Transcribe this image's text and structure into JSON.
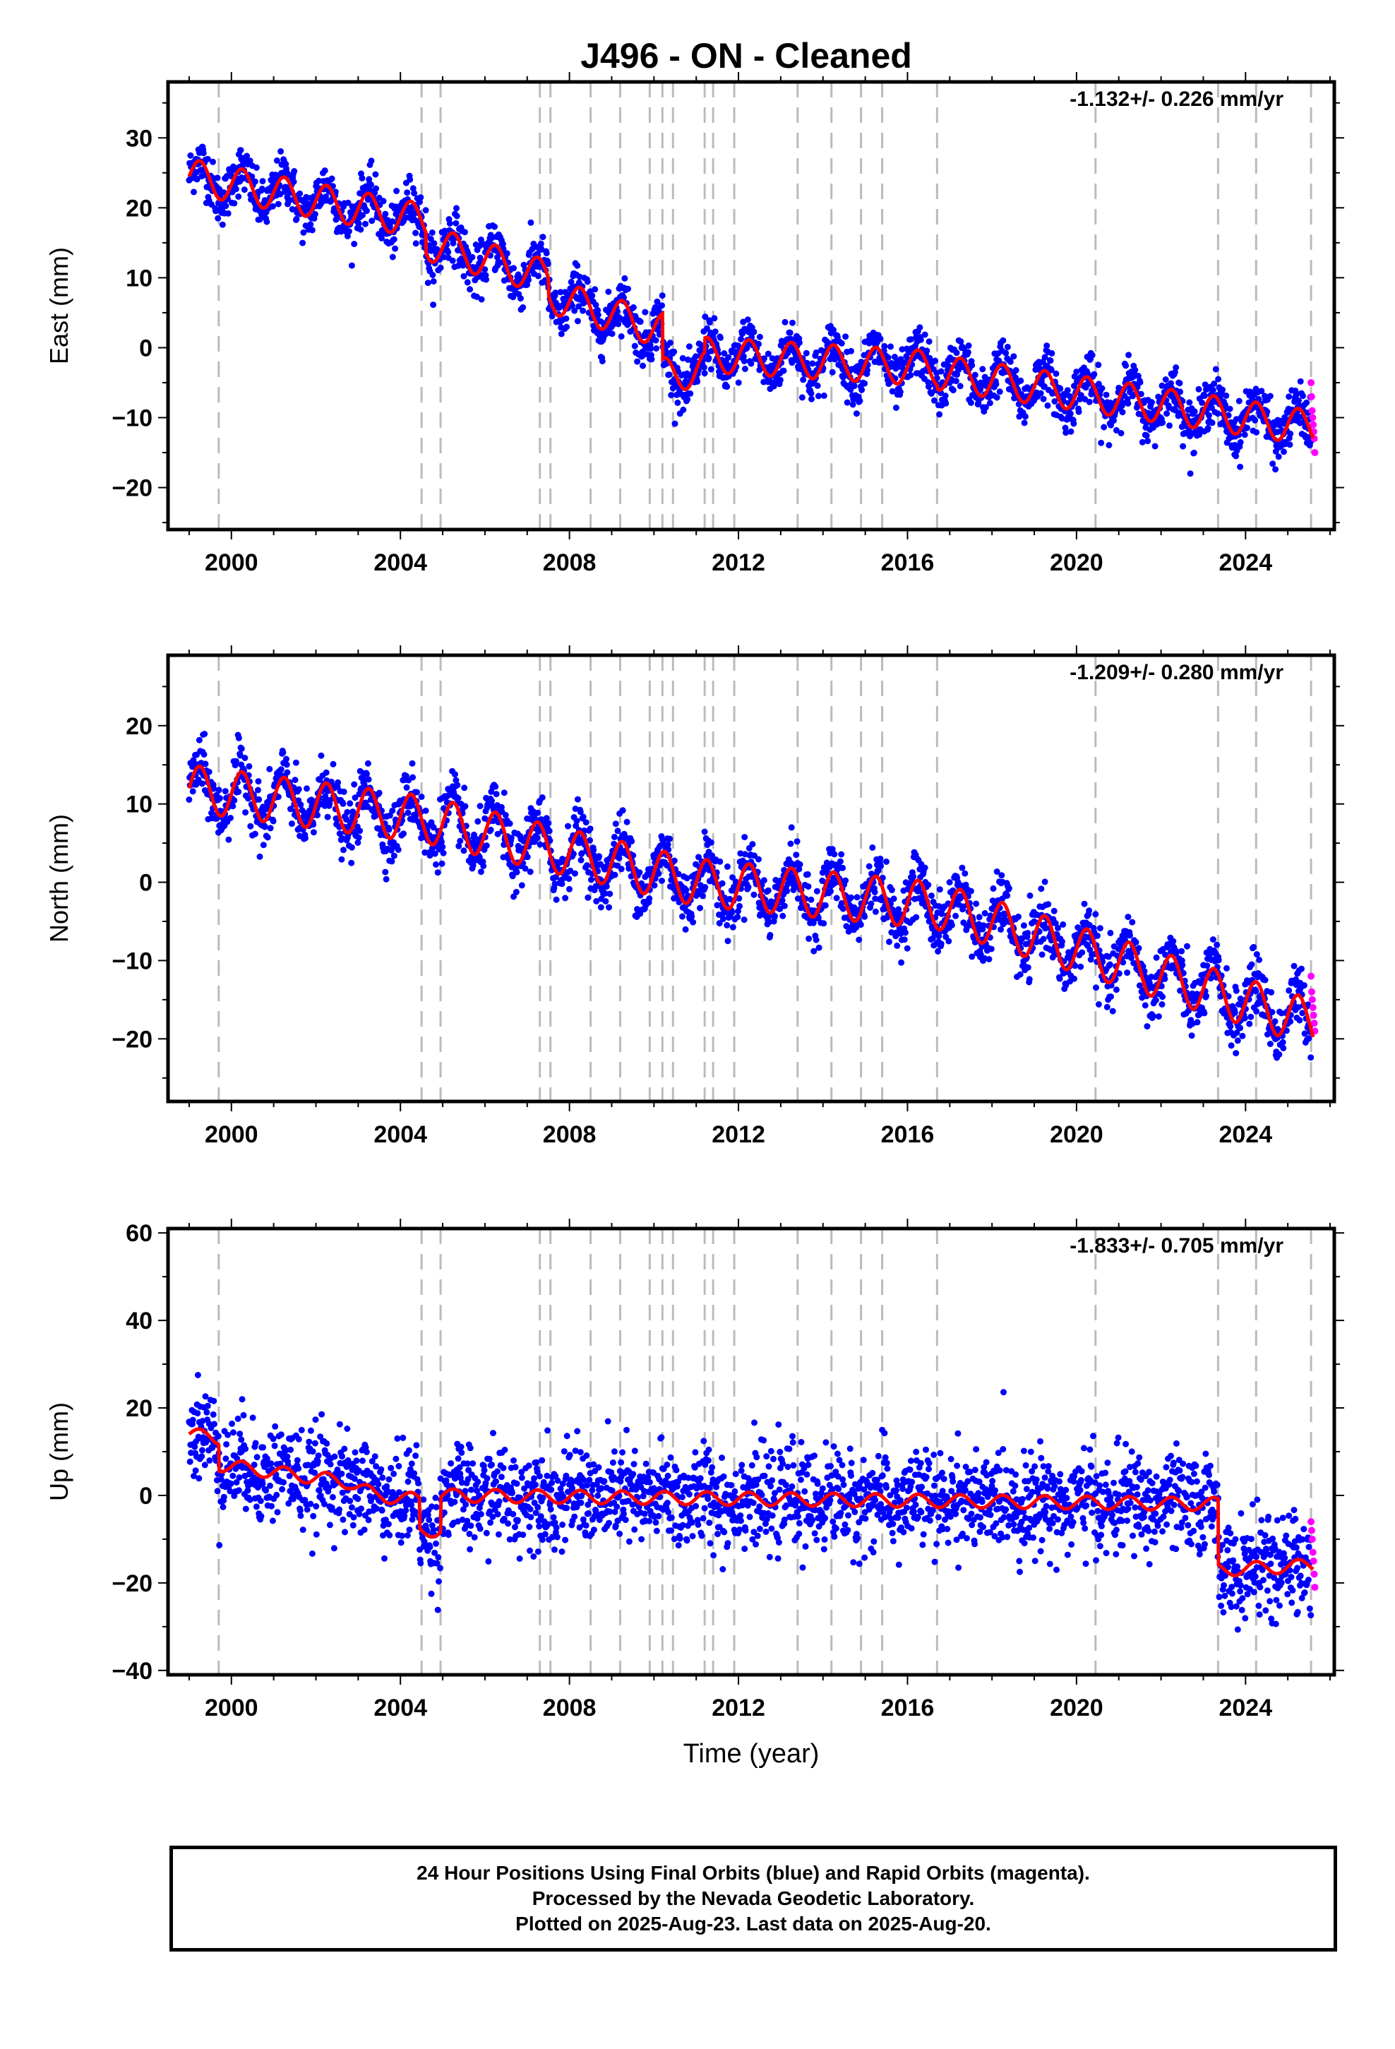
{
  "title": "J496  - ON - Cleaned",
  "footer": {
    "line1": "24 Hour Positions Using Final Orbits (blue) and Rapid Orbits (magenta).",
    "line2": "Processed by the Nevada Geodetic Laboratory.",
    "line3": "Plotted on 2025-Aug-23. Last data on 2025-Aug-20."
  },
  "colors": {
    "final_orbits": "#0000ff",
    "rapid_orbits": "#ff00ff",
    "model": "#ff0000",
    "event_lines": "#bbbbbb"
  },
  "chart_data": [
    {
      "type": "scatter",
      "title": "",
      "xlabel": "",
      "ylabel": "East (mm)",
      "xlim": [
        1998.5,
        2026.1
      ],
      "ylim": [
        -26,
        38
      ],
      "xticks": [
        2000,
        2004,
        2008,
        2012,
        2016,
        2020,
        2024
      ],
      "yticks": [
        -20,
        -10,
        0,
        10,
        20,
        30
      ],
      "rate_label": "-1.132+/- 0.226 mm/yr",
      "event_lines": [
        1999.7,
        2004.5,
        2004.95,
        2007.3,
        2007.55,
        2008.5,
        2009.2,
        2009.9,
        2010.2,
        2010.45,
        2011.2,
        2011.4,
        2011.9,
        2013.4,
        2014.2,
        2014.9,
        2015.4,
        2016.7,
        2020.45,
        2023.35,
        2024.25,
        2025.55
      ],
      "model": {
        "x": [
          1999.0,
          2004.6,
          2004.61,
          2007.5,
          2007.51,
          2009.9,
          2010.2,
          2010.21,
          2011.2,
          2011.21,
          2016.7,
          2016.71,
          2025.6
        ],
        "trend": [
          24.5,
          18.0,
          15.0,
          10.0,
          7.5,
          3.0,
          2.5,
          -4.0,
          -3.0,
          -1.0,
          -3.0,
          -3.5,
          -11.5
        ],
        "seasonal_amplitude": 2.5
      },
      "final_orbits": {
        "x_start": 1999.0,
        "x_end": 2025.55,
        "scatter_sd": 1.8
      },
      "rapid_orbits": {
        "x_start": 2025.55,
        "x_end": 2025.64,
        "values": [
          -5,
          -7,
          -9,
          -10,
          -11,
          -12,
          -13,
          -15
        ]
      }
    },
    {
      "type": "scatter",
      "title": "",
      "xlabel": "",
      "ylabel": "North (mm)",
      "xlim": [
        1998.5,
        2026.1
      ],
      "ylim": [
        -28,
        29
      ],
      "xticks": [
        2000,
        2004,
        2008,
        2012,
        2016,
        2020,
        2024
      ],
      "yticks": [
        -20,
        -10,
        0,
        10,
        20
      ],
      "rate_label": "-1.209+/- 0.280 mm/yr",
      "event_lines": [
        1999.7,
        2004.5,
        2004.95,
        2007.3,
        2007.55,
        2008.5,
        2009.2,
        2009.9,
        2010.2,
        2010.45,
        2011.2,
        2011.4,
        2011.9,
        2013.4,
        2014.2,
        2014.9,
        2015.4,
        2016.7,
        2020.45,
        2023.35,
        2024.25,
        2025.55
      ],
      "model": {
        "x": [
          1999.0,
          2004.6,
          2011.0,
          2016.7,
          2025.6
        ],
        "trend": [
          12.0,
          8.0,
          0.0,
          -3.0,
          -18.0
        ],
        "seasonal_amplitude": 3.0
      },
      "final_orbits": {
        "x_start": 1999.0,
        "x_end": 2025.55,
        "scatter_sd": 1.9
      },
      "rapid_orbits": {
        "x_start": 2025.55,
        "x_end": 2025.64,
        "values": [
          -12,
          -14,
          -15,
          -16,
          -17,
          -18,
          -19
        ]
      }
    },
    {
      "type": "scatter",
      "title": "",
      "xlabel": "Time (year)",
      "ylabel": "Up (mm)",
      "xlim": [
        1998.5,
        2026.1
      ],
      "ylim": [
        -41,
        61
      ],
      "xticks": [
        2000,
        2004,
        2008,
        2012,
        2016,
        2020,
        2024
      ],
      "yticks": [
        -40,
        -20,
        0,
        20,
        40,
        60
      ],
      "rate_label": "-1.833+/- 0.705 mm/yr",
      "event_lines": [
        1999.7,
        2004.5,
        2004.95,
        2007.3,
        2007.55,
        2008.5,
        2009.2,
        2009.9,
        2010.2,
        2010.45,
        2011.2,
        2011.4,
        2011.9,
        2013.4,
        2014.2,
        2014.9,
        2015.4,
        2016.7,
        2020.45,
        2023.35,
        2024.25,
        2025.55
      ],
      "model": {
        "x": [
          1999.0,
          1999.7,
          1999.71,
          2002.8,
          2003.4,
          2004.45,
          2004.46,
          2004.95,
          2004.96,
          2023.35,
          2023.36,
          2025.6
        ],
        "trend": [
          14.0,
          13.0,
          7.0,
          3.0,
          0.0,
          -1.0,
          -8.0,
          -8.0,
          0.0,
          -2.0,
          -17.0,
          -16.0
        ],
        "seasonal_amplitude": 1.5
      },
      "final_orbits": {
        "x_start": 1999.0,
        "x_end": 2025.55,
        "scatter_sd": 5.5
      },
      "rapid_orbits": {
        "x_start": 2025.55,
        "x_end": 2025.64,
        "values": [
          -6,
          -8,
          -10,
          -13,
          -15,
          -18,
          -21
        ]
      }
    }
  ]
}
